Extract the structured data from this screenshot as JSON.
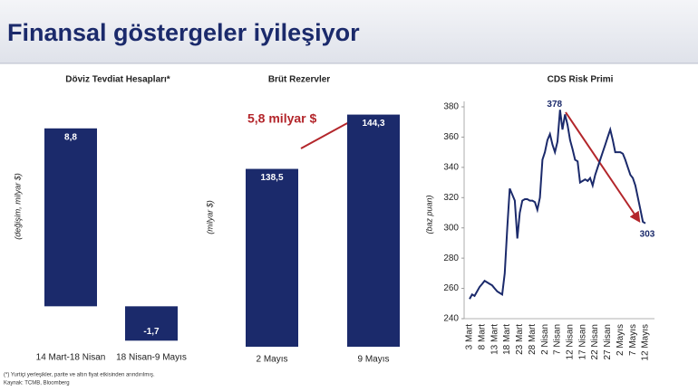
{
  "header": {
    "title": "Finansal göstergeler iyileşiyor"
  },
  "footnotes": [
    "(*) Yurtiçi yerleşikler, parite ve altın fiyat etkisinden arındırılmış.",
    "Kaynak: TCMB, Bloomberg"
  ],
  "chart_data": [
    {
      "type": "bar",
      "title": "Döviz Tevdiat Hesapları*",
      "y_label": "(değişim, milyar $)",
      "categories": [
        "14 Mart-18 Nisan",
        "18 Nisan-9 Mayıs"
      ],
      "values": [
        8.8,
        -1.7
      ],
      "value_labels": [
        "8,8",
        "-1,7"
      ],
      "color": "#1b2a6b",
      "ylim": [
        -2,
        10
      ]
    },
    {
      "type": "bar",
      "title": "Brüt Rezervler",
      "y_label": "(milyar $)",
      "annotation": "5,8 milyar $",
      "categories": [
        "2 Mayıs",
        "9 Mayıs"
      ],
      "values": [
        138.5,
        144.3
      ],
      "value_labels": [
        "138,5",
        "144,3"
      ],
      "color": "#1b2a6b",
      "ylim": [
        119.5,
        146
      ]
    },
    {
      "type": "line",
      "title": "CDS Risk Primi",
      "y_label": "(baz puan)",
      "categories": [
        "3 Mart",
        null,
        null,
        null,
        null,
        "8 Mart",
        null,
        null,
        null,
        null,
        "13 Mart",
        null,
        null,
        null,
        null,
        "18 Mart",
        null,
        null,
        null,
        null,
        "23 Mart",
        null,
        null,
        null,
        null,
        "28 Mart",
        null,
        null,
        null,
        null,
        "2 Nisan",
        null,
        null,
        null,
        null,
        "7 Nisan",
        null,
        null,
        null,
        null,
        "12 Nisan",
        null,
        null,
        null,
        null,
        "17 Nisan",
        null,
        null,
        null,
        null,
        "22 Nisan",
        null,
        null,
        null,
        null,
        "27 Nisan",
        null,
        null,
        null,
        null,
        "2 Mayıs",
        null,
        null,
        null,
        null,
        "7 Mayıs",
        null,
        null,
        null,
        null,
        "12 Mayıs"
      ],
      "series": [
        {
          "name": "CDS",
          "color": "#1b2a6b",
          "values": [
            253,
            256,
            255,
            258,
            261,
            263,
            265,
            264,
            263,
            262,
            260,
            258,
            257,
            256,
            270,
            300,
            326,
            322,
            318,
            293,
            310,
            318,
            319,
            319,
            318,
            318,
            317,
            312,
            320,
            345,
            350,
            358,
            362,
            355,
            350,
            357,
            378,
            365,
            375,
            368,
            358,
            352,
            345,
            344,
            330,
            331,
            332,
            331,
            333,
            328,
            335,
            340,
            345,
            350,
            355,
            360,
            365,
            358,
            350,
            350,
            350,
            349,
            345,
            340,
            335,
            333,
            328,
            320,
            312,
            304,
            303
          ],
          "value_labels": [
            null,
            null,
            null,
            null,
            null,
            null,
            null,
            null,
            null,
            null,
            null,
            null,
            null,
            null,
            null,
            null,
            null,
            null,
            null,
            null,
            null,
            null,
            null,
            null,
            null,
            null,
            null,
            null,
            null,
            null,
            null,
            null,
            null,
            null,
            null,
            null,
            "378",
            null,
            null,
            null,
            null,
            null,
            null,
            null,
            null,
            null,
            null,
            null,
            null,
            null,
            null,
            null,
            null,
            null,
            null,
            null,
            null,
            null,
            null,
            null,
            null,
            null,
            null,
            null,
            null,
            null,
            null,
            null,
            null,
            null,
            "303"
          ]
        }
      ],
      "ylim": [
        240,
        380
      ],
      "yticks": [
        240,
        260,
        280,
        300,
        320,
        340,
        360,
        380
      ]
    }
  ]
}
